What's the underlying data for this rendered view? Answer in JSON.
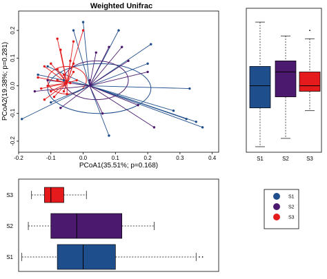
{
  "chart_data": [
    {
      "type": "scatter",
      "title": "Weighted Unifrac",
      "xlabel": "PCoA1(35.51%; p=0.168)",
      "ylabel": "PCoA2(19.38%; p=0.281)",
      "xlim": [
        -0.2,
        0.42
      ],
      "ylim": [
        -0.24,
        0.27
      ],
      "xticks": [
        "-0.2",
        "-0.1",
        "0.0",
        "0.1",
        "0.2",
        "0.3",
        "0.4"
      ],
      "yticks": [
        "-0.2",
        "-0.1",
        "0.0",
        "0.1",
        "0.2"
      ],
      "series": [
        {
          "name": "S1",
          "color": "#1f4e8c",
          "centroid": [
            0.02,
            0.0
          ],
          "ellipse": {
            "cx": 0.05,
            "cy": -0.01,
            "rx": 0.16,
            "ry": 0.09
          },
          "points": [
            [
              0.0,
              0.23
            ],
            [
              -0.03,
              0.2
            ],
            [
              0.11,
              0.2
            ],
            [
              0.21,
              0.15
            ],
            [
              0.2,
              0.08
            ],
            [
              0.33,
              -0.01
            ],
            [
              0.28,
              -0.09
            ],
            [
              0.32,
              -0.12
            ],
            [
              0.35,
              -0.13
            ],
            [
              0.37,
              -0.15
            ],
            [
              0.08,
              -0.18
            ],
            [
              -0.19,
              -0.12
            ],
            [
              -0.1,
              -0.06
            ],
            [
              -0.06,
              0.02
            ],
            [
              -0.14,
              0.04
            ],
            [
              -0.11,
              0.07
            ]
          ]
        },
        {
          "name": "S2",
          "color": "#4b1a6e",
          "centroid": [
            0.02,
            0.0
          ],
          "ellipse": {
            "cx": 0.04,
            "cy": 0.02,
            "rx": 0.1,
            "ry": 0.07
          },
          "points": [
            [
              0.08,
              0.14
            ],
            [
              0.14,
              0.09
            ],
            [
              0.12,
              0.14
            ],
            [
              0.2,
              0.05
            ],
            [
              0.04,
              0.12
            ],
            [
              0.02,
              0.02
            ],
            [
              0.17,
              -0.07
            ],
            [
              0.22,
              -0.15
            ],
            [
              0.06,
              -0.1
            ],
            [
              -0.07,
              -0.08
            ],
            [
              -0.15,
              -0.02
            ],
            [
              -0.11,
              0.02
            ]
          ]
        },
        {
          "name": "S3",
          "color": "#e41a1c",
          "centroid": [
            -0.05,
            0.01
          ],
          "ellipse": {
            "cx": -0.05,
            "cy": 0.02,
            "rx": 0.06,
            "ry": 0.05
          },
          "points": [
            [
              -0.08,
              0.17
            ],
            [
              0.0,
              0.2
            ],
            [
              -0.03,
              0.16
            ],
            [
              -0.07,
              0.13
            ],
            [
              -0.12,
              0.07
            ],
            [
              -0.1,
              0.08
            ],
            [
              -0.08,
              0.06
            ],
            [
              -0.04,
              0.09
            ],
            [
              -0.03,
              0.05
            ],
            [
              -0.14,
              0.03
            ],
            [
              -0.13,
              -0.01
            ],
            [
              -0.12,
              -0.05
            ],
            [
              -0.09,
              -0.04
            ],
            [
              -0.06,
              -0.02
            ],
            [
              -0.02,
              0.02
            ],
            [
              -0.11,
              0.0
            ],
            [
              -0.08,
              0.02
            ],
            [
              -0.06,
              0.04
            ],
            [
              -0.03,
              0.08
            ],
            [
              -0.05,
              -0.03
            ],
            [
              -0.1,
              -0.02
            ],
            [
              -0.04,
              0.01
            ]
          ]
        }
      ]
    },
    {
      "type": "box",
      "orientation": "vertical",
      "categories": [
        "S1",
        "S2",
        "S3"
      ],
      "shared_axis": "PCoA2",
      "boxes": [
        {
          "name": "S1",
          "color": "#1f4e8c",
          "min": -0.22,
          "q1": -0.08,
          "median": 0.0,
          "q3": 0.07,
          "max": 0.23,
          "outliers": []
        },
        {
          "name": "S2",
          "color": "#4b1a6e",
          "min": -0.19,
          "q1": -0.04,
          "median": 0.05,
          "q3": 0.09,
          "max": 0.18,
          "outliers": []
        },
        {
          "name": "S3",
          "color": "#e41a1c",
          "min": -0.09,
          "q1": -0.02,
          "median": 0.0,
          "q3": 0.05,
          "max": 0.17,
          "outliers": [
            0.2
          ]
        }
      ]
    },
    {
      "type": "box",
      "orientation": "horizontal",
      "categories": [
        "S3",
        "S2",
        "S1"
      ],
      "shared_axis": "PCoA1",
      "boxes": [
        {
          "name": "S3",
          "color": "#e41a1c",
          "min": -0.16,
          "q1": -0.12,
          "median": -0.1,
          "q3": -0.06,
          "max": 0.01,
          "outliers": []
        },
        {
          "name": "S2",
          "color": "#4b1a6e",
          "min": -0.17,
          "q1": -0.1,
          "median": -0.02,
          "q3": 0.12,
          "max": 0.22,
          "outliers": []
        },
        {
          "name": "S1",
          "color": "#1f4e8c",
          "min": -0.19,
          "q1": -0.08,
          "median": 0.0,
          "q3": 0.1,
          "max": 0.35,
          "outliers": [
            0.36,
            0.37
          ]
        }
      ]
    }
  ],
  "legend": {
    "items": [
      {
        "label": "S1",
        "color": "#1f4e8c"
      },
      {
        "label": "S2",
        "color": "#4b1a6e"
      },
      {
        "label": "S3",
        "color": "#e41a1c"
      }
    ]
  }
}
